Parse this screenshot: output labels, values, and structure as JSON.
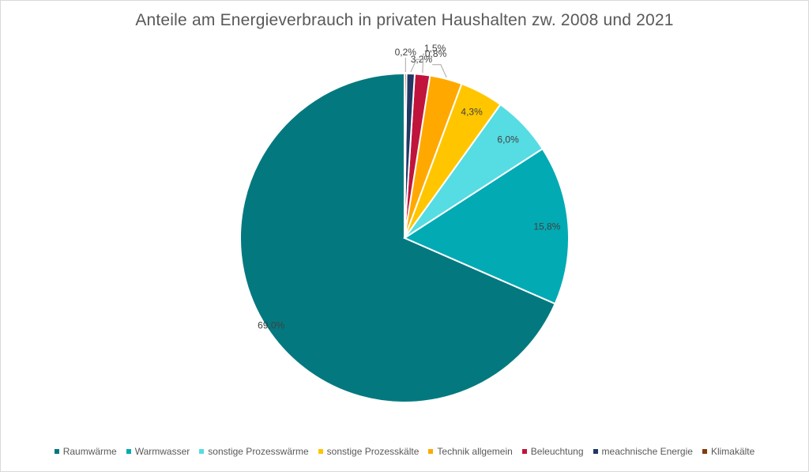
{
  "chart_data": {
    "type": "pie",
    "title": "Anteile am Energieverbrauch in privaten Haushalten zw. 2008 und 2021",
    "slices": [
      {
        "name": "Raumwärme",
        "value": 69.0,
        "label": "69,0%",
        "color": "#03797F"
      },
      {
        "name": "Warmwasser",
        "value": 15.8,
        "label": "15,8%",
        "color": "#02AAB4"
      },
      {
        "name": "sonstige Prozesswärme",
        "value": 6.0,
        "label": "6,0%",
        "color": "#56DCE3"
      },
      {
        "name": "sonstige Prozesskälte",
        "value": 4.3,
        "label": "4,3%",
        "color": "#FFC600"
      },
      {
        "name": "Technik allgemein",
        "value": 3.2,
        "label": "3,2%",
        "color": "#FFA900"
      },
      {
        "name": "Beleuchtung",
        "value": 1.5,
        "label": "1,5%",
        "color": "#C0143C"
      },
      {
        "name": "meachnische Energie",
        "value": 0.8,
        "label": "0,8%",
        "color": "#1F3864"
      },
      {
        "name": "Klimakälte",
        "value": 0.2,
        "label": "0,2%",
        "color": "#843C0C"
      }
    ],
    "legend_position": "bottom"
  }
}
